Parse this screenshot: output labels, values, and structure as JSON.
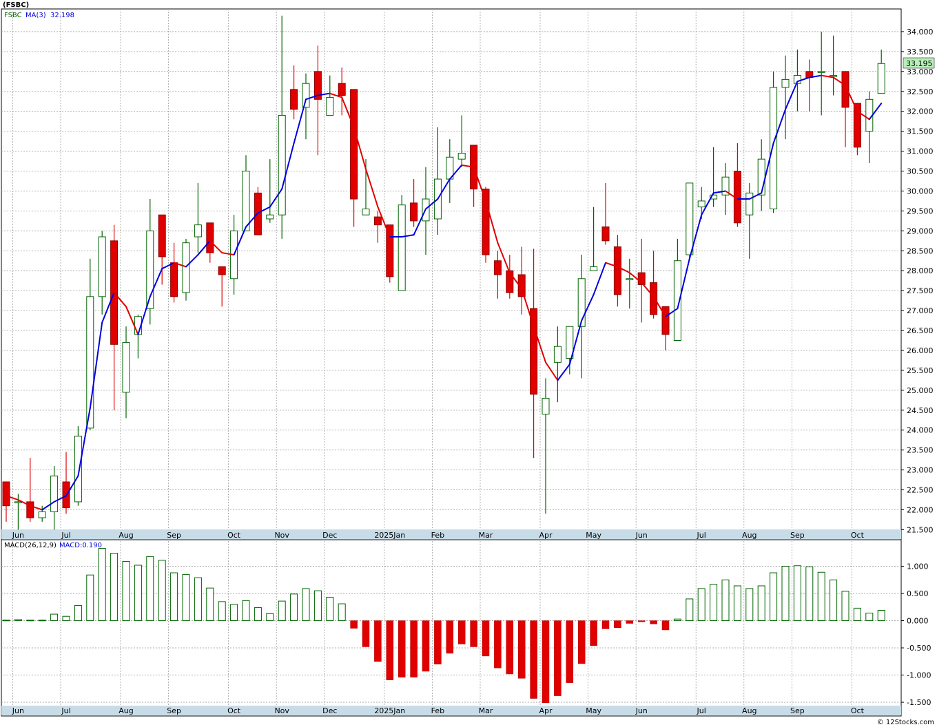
{
  "header": {
    "symbol_title": "(FSBC)",
    "legend_symbol": "FSBC",
    "legend_ma_label": "MA(3)",
    "legend_ma_value": "32.198",
    "macd_label": "MACD(26,12,9)",
    "macd_value_label": "MACD:0.190",
    "watermark": "© 12Stocks.com"
  },
  "colors": {
    "up": "#006400",
    "down": "#e00000",
    "ma_up": "#0000dd",
    "ma_down": "#e00000",
    "grid": "#a0a0a0",
    "month_band": "#c8dce8",
    "price_tag": "#b8f0b8"
  },
  "chart_data": [
    {
      "type": "candlestick",
      "title": "FSBC",
      "interval": "weekly",
      "ylim": [
        21.3,
        34.5
      ],
      "yticks": [
        21.5,
        22,
        22.5,
        23,
        23.5,
        24,
        24.5,
        25,
        25.5,
        26,
        26.5,
        27,
        27.5,
        28,
        28.5,
        29,
        29.5,
        30,
        30.5,
        31,
        31.5,
        32,
        32.5,
        33,
        33.5,
        34
      ],
      "ytick_labels": [
        "21.500",
        "22.000",
        "22.500",
        "23.000",
        "23.500",
        "24.000",
        "24.500",
        "25.000",
        "25.500",
        "26.000",
        "26.500",
        "27.000",
        "27.500",
        "28.000",
        "28.500",
        "29.000",
        "29.500",
        "30.000",
        "30.500",
        "31.000",
        "31.500",
        "32.000",
        "32.500",
        "33.000",
        "33.500",
        "34.000"
      ],
      "last_price": "33.195",
      "month_labels": [
        {
          "label": "Jun",
          "week": 1
        },
        {
          "label": "Jul",
          "week": 5
        },
        {
          "label": "Aug",
          "week": 10
        },
        {
          "label": "Sep",
          "week": 14
        },
        {
          "label": "Oct",
          "week": 19
        },
        {
          "label": "Nov",
          "week": 23
        },
        {
          "label": "Dec",
          "week": 27
        },
        {
          "label": "2025Jan",
          "week": 32
        },
        {
          "label": "Feb",
          "week": 36
        },
        {
          "label": "Mar",
          "week": 40
        },
        {
          "label": "Apr",
          "week": 45
        },
        {
          "label": "May",
          "week": 49
        },
        {
          "label": "Jun",
          "week": 53
        },
        {
          "label": "Jul",
          "week": 58
        },
        {
          "label": "Aug",
          "week": 62
        },
        {
          "label": "Sep",
          "week": 66
        },
        {
          "label": "Oct",
          "week": 71
        }
      ],
      "candles": [
        {
          "o": 22.7,
          "h": 22.7,
          "l": 21.7,
          "c": 22.1
        },
        {
          "o": 22.2,
          "h": 22.4,
          "l": 21.5,
          "c": 22.2
        },
        {
          "o": 22.2,
          "h": 23.3,
          "l": 21.7,
          "c": 21.8
        },
        {
          "o": 21.8,
          "h": 22.1,
          "l": 21.7,
          "c": 21.95
        },
        {
          "o": 21.95,
          "h": 23.1,
          "l": 21.5,
          "c": 22.85
        },
        {
          "o": 22.7,
          "h": 23.45,
          "l": 21.9,
          "c": 22.05
        },
        {
          "o": 22.2,
          "h": 24.1,
          "l": 22.1,
          "c": 23.85
        },
        {
          "o": 24.05,
          "h": 28.3,
          "l": 24.0,
          "c": 27.35
        },
        {
          "o": 27.35,
          "h": 29.0,
          "l": 26.9,
          "c": 28.85
        },
        {
          "o": 28.75,
          "h": 29.15,
          "l": 24.5,
          "c": 26.15
        },
        {
          "o": 24.95,
          "h": 26.6,
          "l": 24.3,
          "c": 26.2
        },
        {
          "o": 26.4,
          "h": 26.9,
          "l": 25.8,
          "c": 26.85
        },
        {
          "o": 27.05,
          "h": 29.8,
          "l": 26.65,
          "c": 29.0
        },
        {
          "o": 29.4,
          "h": 29.4,
          "l": 27.65,
          "c": 28.35
        },
        {
          "o": 28.2,
          "h": 28.7,
          "l": 27.2,
          "c": 27.35
        },
        {
          "o": 27.45,
          "h": 28.8,
          "l": 27.25,
          "c": 28.7
        },
        {
          "o": 28.85,
          "h": 30.2,
          "l": 28.45,
          "c": 29.15
        },
        {
          "o": 29.2,
          "h": 29.2,
          "l": 28.2,
          "c": 28.45
        },
        {
          "o": 28.1,
          "h": 28.1,
          "l": 27.1,
          "c": 27.9
        },
        {
          "o": 27.8,
          "h": 29.4,
          "l": 27.4,
          "c": 29.0
        },
        {
          "o": 29.0,
          "h": 30.9,
          "l": 29.0,
          "c": 30.5
        },
        {
          "o": 29.95,
          "h": 30.1,
          "l": 28.9,
          "c": 28.9
        },
        {
          "o": 29.3,
          "h": 30.8,
          "l": 29.2,
          "c": 29.4
        },
        {
          "o": 29.4,
          "h": 34.4,
          "l": 28.8,
          "c": 31.9
        },
        {
          "o": 32.55,
          "h": 33.15,
          "l": 31.8,
          "c": 32.05
        },
        {
          "o": 32.1,
          "h": 32.95,
          "l": 31.3,
          "c": 32.7
        },
        {
          "o": 33.0,
          "h": 33.65,
          "l": 30.9,
          "c": 32.3
        },
        {
          "o": 31.9,
          "h": 32.9,
          "l": 31.9,
          "c": 32.35
        },
        {
          "o": 32.7,
          "h": 33.1,
          "l": 31.9,
          "c": 32.4
        },
        {
          "o": 32.55,
          "h": 32.55,
          "l": 29.1,
          "c": 29.8
        },
        {
          "o": 29.4,
          "h": 30.8,
          "l": 29.4,
          "c": 29.55
        },
        {
          "o": 29.35,
          "h": 29.5,
          "l": 28.7,
          "c": 29.15
        },
        {
          "o": 29.15,
          "h": 29.15,
          "l": 27.7,
          "c": 27.85
        },
        {
          "o": 27.5,
          "h": 29.9,
          "l": 27.5,
          "c": 29.65
        },
        {
          "o": 29.7,
          "h": 30.3,
          "l": 29.1,
          "c": 29.25
        },
        {
          "o": 29.25,
          "h": 30.6,
          "l": 28.4,
          "c": 29.8
        },
        {
          "o": 29.3,
          "h": 31.6,
          "l": 28.9,
          "c": 30.3
        },
        {
          "o": 30.3,
          "h": 31.3,
          "l": 29.7,
          "c": 30.85
        },
        {
          "o": 30.8,
          "h": 31.9,
          "l": 30.6,
          "c": 30.95
        },
        {
          "o": 31.15,
          "h": 31.15,
          "l": 29.6,
          "c": 30.05
        },
        {
          "o": 30.05,
          "h": 30.1,
          "l": 28.2,
          "c": 28.4
        },
        {
          "o": 28.25,
          "h": 28.5,
          "l": 27.3,
          "c": 27.9
        },
        {
          "o": 28.0,
          "h": 28.4,
          "l": 27.3,
          "c": 27.45
        },
        {
          "o": 27.9,
          "h": 28.6,
          "l": 26.9,
          "c": 27.35
        },
        {
          "o": 27.05,
          "h": 28.55,
          "l": 23.3,
          "c": 24.9
        },
        {
          "o": 24.4,
          "h": 25.3,
          "l": 21.9,
          "c": 24.8
        },
        {
          "o": 25.7,
          "h": 26.6,
          "l": 24.7,
          "c": 26.1
        },
        {
          "o": 25.8,
          "h": 26.5,
          "l": 25.4,
          "c": 26.6
        },
        {
          "o": 26.6,
          "h": 28.4,
          "l": 25.3,
          "c": 27.8
        },
        {
          "o": 28.0,
          "h": 29.6,
          "l": 28.0,
          "c": 28.1
        },
        {
          "o": 29.1,
          "h": 30.2,
          "l": 28.65,
          "c": 28.75
        },
        {
          "o": 28.6,
          "h": 28.9,
          "l": 27.1,
          "c": 27.4
        },
        {
          "o": 27.8,
          "h": 28.3,
          "l": 27.05,
          "c": 27.8
        },
        {
          "o": 27.95,
          "h": 28.8,
          "l": 26.7,
          "c": 27.65
        },
        {
          "o": 27.7,
          "h": 28.5,
          "l": 26.8,
          "c": 26.9
        },
        {
          "o": 27.1,
          "h": 27.1,
          "l": 26.0,
          "c": 26.4
        },
        {
          "o": 26.25,
          "h": 28.8,
          "l": 26.25,
          "c": 28.25
        },
        {
          "o": 28.4,
          "h": 30.2,
          "l": 28.3,
          "c": 30.2
        },
        {
          "o": 29.6,
          "h": 30.1,
          "l": 29.3,
          "c": 29.75
        },
        {
          "o": 29.8,
          "h": 31.1,
          "l": 29.6,
          "c": 29.9
        },
        {
          "o": 29.9,
          "h": 30.7,
          "l": 29.4,
          "c": 30.35
        },
        {
          "o": 30.5,
          "h": 31.2,
          "l": 29.1,
          "c": 29.2
        },
        {
          "o": 29.4,
          "h": 30.2,
          "l": 28.3,
          "c": 29.95
        },
        {
          "o": 29.9,
          "h": 31.3,
          "l": 29.5,
          "c": 30.8
        },
        {
          "o": 29.55,
          "h": 33.0,
          "l": 29.45,
          "c": 32.6
        },
        {
          "o": 32.6,
          "h": 33.4,
          "l": 31.3,
          "c": 32.8
        },
        {
          "o": 32.7,
          "h": 33.55,
          "l": 32.0,
          "c": 32.9
        },
        {
          "o": 33.0,
          "h": 33.3,
          "l": 32.0,
          "c": 32.85
        },
        {
          "o": 33.0,
          "h": 34.0,
          "l": 31.9,
          "c": 33.0
        },
        {
          "o": 32.9,
          "h": 33.9,
          "l": 32.4,
          "c": 32.9
        },
        {
          "o": 33.0,
          "h": 33.0,
          "l": 31.1,
          "c": 32.1
        },
        {
          "o": 32.2,
          "h": 32.2,
          "l": 30.9,
          "c": 31.1
        },
        {
          "o": 31.5,
          "h": 32.5,
          "l": 30.7,
          "c": 32.3
        },
        {
          "o": 32.45,
          "h": 33.55,
          "l": 32.45,
          "c": 33.2
        }
      ],
      "ma3": [
        22.35,
        22.25,
        22.1,
        22.0,
        22.2,
        22.35,
        22.85,
        24.55,
        26.7,
        27.45,
        27.1,
        26.4,
        27.35,
        28.05,
        28.2,
        28.1,
        28.4,
        28.75,
        28.45,
        28.4,
        29.1,
        29.45,
        29.6,
        30.05,
        31.2,
        32.3,
        32.4,
        32.45,
        32.35,
        31.6,
        30.55,
        29.6,
        28.85,
        28.85,
        28.9,
        29.55,
        29.8,
        30.3,
        30.65,
        30.6,
        29.75,
        28.7,
        27.95,
        27.55,
        26.6,
        25.7,
        25.25,
        25.65,
        26.75,
        27.4,
        28.2,
        28.1,
        27.95,
        27.7,
        27.35,
        26.85,
        27.05,
        28.3,
        29.4,
        29.95,
        30.0,
        29.8,
        29.8,
        29.95,
        31.2,
        32.05,
        32.75,
        32.85,
        32.9,
        32.85,
        32.65,
        32.0,
        31.8,
        32.2
      ]
    },
    {
      "type": "bar",
      "title": "MACD(26,12,9)",
      "ylim": [
        -1.55,
        1.45
      ],
      "yticks": [
        -1.5,
        -1.0,
        -0.5,
        0.0,
        0.5,
        1.0
      ],
      "ytick_labels": [
        "-1.500",
        "-1.000",
        "-0.500",
        "0.000",
        "0.500",
        "1.000"
      ],
      "values": [
        0.01,
        0.02,
        0.01,
        0.01,
        0.12,
        0.08,
        0.28,
        0.84,
        1.33,
        1.24,
        1.09,
        1.02,
        1.18,
        1.11,
        0.88,
        0.85,
        0.79,
        0.6,
        0.35,
        0.3,
        0.37,
        0.24,
        0.13,
        0.36,
        0.49,
        0.59,
        0.55,
        0.43,
        0.31,
        -0.14,
        -0.48,
        -0.75,
        -1.09,
        -1.04,
        -1.04,
        -0.93,
        -0.8,
        -0.6,
        -0.43,
        -0.48,
        -0.65,
        -0.87,
        -0.98,
        -1.06,
        -1.43,
        -1.51,
        -1.38,
        -1.14,
        -0.79,
        -0.46,
        -0.15,
        -0.13,
        -0.05,
        -0.02,
        -0.06,
        -0.17,
        0.03,
        0.4,
        0.59,
        0.67,
        0.75,
        0.64,
        0.59,
        0.64,
        0.88,
        1.0,
        1.01,
        0.99,
        0.89,
        0.75,
        0.54,
        0.23,
        0.14,
        0.19
      ]
    }
  ]
}
